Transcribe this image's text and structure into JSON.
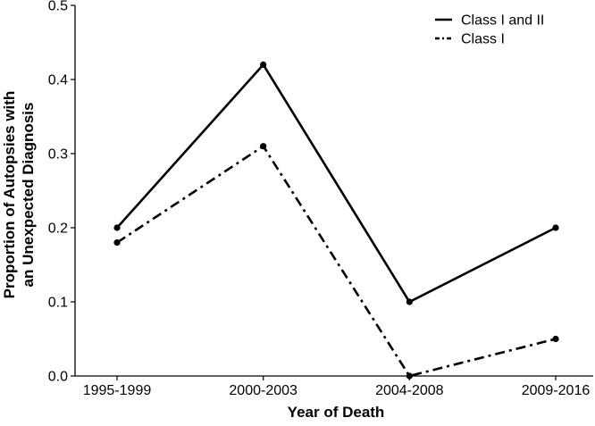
{
  "chart_data": {
    "type": "line",
    "title": "",
    "xlabel": "Year of Death",
    "ylabel_lines": [
      "Proportion of Autopsies with",
      "an Unexpected Diagnosis"
    ],
    "categories": [
      "1995-1999",
      "2000-2003",
      "2004-2008",
      "2009-2016"
    ],
    "ylim": [
      0,
      0.5
    ],
    "yticks": [
      "0.0",
      "0.1",
      "0.2",
      "0.3",
      "0.4",
      "0.5"
    ],
    "grid": false,
    "legend_position": "top-right",
    "series": [
      {
        "name": "Class I and II",
        "line_style": "solid",
        "color": "#000000",
        "values": [
          0.2,
          0.42,
          0.1,
          0.2
        ]
      },
      {
        "name": "Class I",
        "line_style": "dashdot",
        "color": "#000000",
        "values": [
          0.18,
          0.31,
          0.0,
          0.05
        ]
      }
    ]
  }
}
